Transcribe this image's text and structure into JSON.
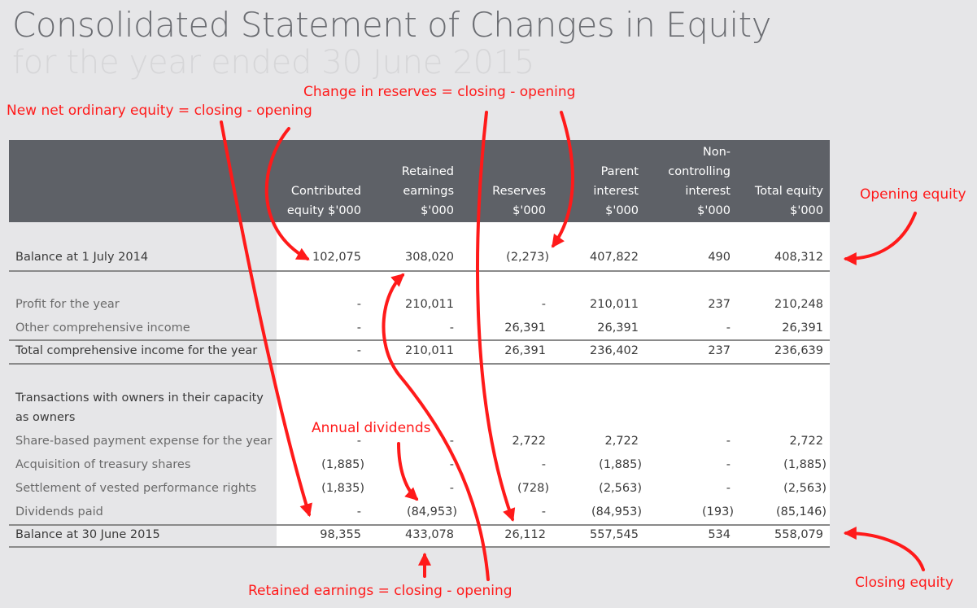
{
  "title": "Consolidated Statement of Changes in Equity",
  "subtitle": "for the year ended 30 June 2015",
  "columns": [
    "Contributed\nequity $'000",
    "Retained\nearnings\n$'000",
    "Reserves\n$'000",
    "Parent\ninterest\n$'000",
    "Non-\ncontrolling\ninterest\n$'000",
    "Total equity\n$'000"
  ],
  "rows": [
    {
      "label": "Balance at 1 July 2014",
      "values": [
        "102,075",
        "308,020",
        "(2,273)",
        "407,822",
        "490",
        "408,312"
      ]
    },
    {
      "label": "Profit for the year",
      "values": [
        "-",
        "210,011",
        "-",
        "210,011",
        "237",
        "210,248"
      ]
    },
    {
      "label": "Other comprehensive income",
      "values": [
        "-",
        "-",
        "26,391",
        "26,391",
        "-",
        "26,391"
      ]
    },
    {
      "label": "Total comprehensive income for the year",
      "values": [
        "-",
        "210,011",
        "26,391",
        "236,402",
        "237",
        "236,639"
      ]
    },
    {
      "label": "Transactions with owners in their capacity",
      "values": []
    },
    {
      "label": "as owners",
      "values": []
    },
    {
      "label": "Share-based payment expense for the year",
      "values": [
        "-",
        "-",
        "2,722",
        "2,722",
        "-",
        "2,722"
      ]
    },
    {
      "label": "Acquisition of treasury shares",
      "values": [
        "(1,885)",
        "-",
        "-",
        "(1,885)",
        "-",
        "(1,885)"
      ]
    },
    {
      "label": "Settlement of vested performance rights",
      "values": [
        "(1,835)",
        "-",
        "(728)",
        "(2,563)",
        "-",
        "(2,563)"
      ]
    },
    {
      "label": "Dividends paid",
      "values": [
        "-",
        "(84,953)",
        "-",
        "(84,953)",
        "(193)",
        "(85,146)"
      ]
    },
    {
      "label": "Balance at 30 June 2015",
      "values": [
        "98,355",
        "433,078",
        "26,112",
        "557,545",
        "534",
        "558,079"
      ]
    }
  ],
  "annotations": {
    "change_reserves": "Change in reserves = closing - opening",
    "new_net_equity": "New net ordinary equity = closing - opening",
    "opening_equity": "Opening equity",
    "annual_dividends": "Annual dividends",
    "closing_equity": "Closing equity",
    "retained_earnings": "Retained earnings = closing - opening"
  },
  "colors": {
    "header_bg": "#5e6167",
    "annotation": "#ff1a1a",
    "page_bg": "#e6e6e8"
  }
}
